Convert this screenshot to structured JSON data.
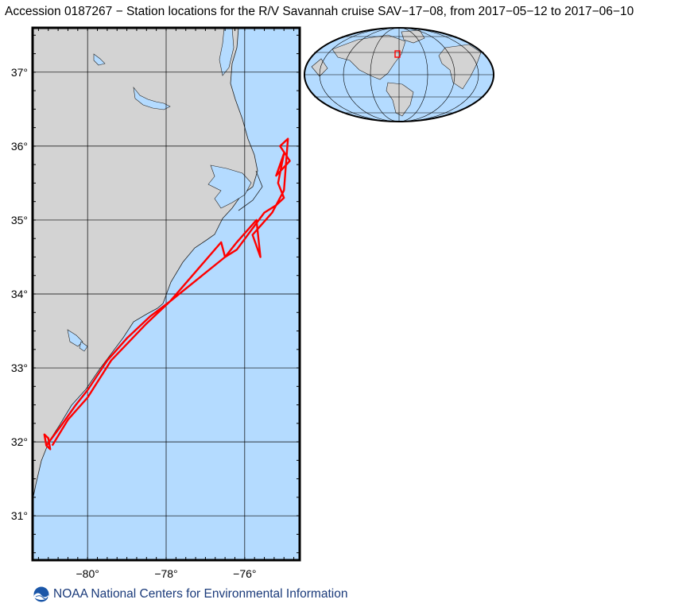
{
  "title": "Accession 0187267 − Station locations for the R/V Savannah cruise SAV−17−08, from 2017−05−12 to 2017−06−10",
  "footer": {
    "text": "NOAA National Centers for Environmental Information",
    "logo_icon": "noaa-logo-icon"
  },
  "colors": {
    "ocean": "#b4dbff",
    "land": "#d3d3d3",
    "track": "#ff0000",
    "grid": "#000000"
  },
  "map": {
    "lat_range": [
      30.4,
      37.6
    ],
    "lon_range": [
      -81.4,
      -74.6
    ],
    "lat_ticks": [
      {
        "value": 31,
        "label": "31°"
      },
      {
        "value": 32,
        "label": "32°"
      },
      {
        "value": 33,
        "label": "33°"
      },
      {
        "value": 34,
        "label": "34°"
      },
      {
        "value": 35,
        "label": "35°"
      },
      {
        "value": 36,
        "label": "36°"
      },
      {
        "value": 37,
        "label": "37°"
      }
    ],
    "lon_ticks": [
      {
        "value": -80,
        "label": "−80°"
      },
      {
        "value": -78,
        "label": "−78°"
      },
      {
        "value": -76,
        "label": "−76°"
      }
    ],
    "track": [
      [
        -81.05,
        31.95
      ],
      [
        -80.95,
        31.9
      ],
      [
        -81.0,
        32.05
      ],
      [
        -81.1,
        32.1
      ],
      [
        -81.05,
        31.95
      ],
      [
        -80.7,
        32.2
      ],
      [
        -80.3,
        32.5
      ],
      [
        -80.0,
        32.7
      ],
      [
        -79.5,
        33.1
      ],
      [
        -79.0,
        33.4
      ],
      [
        -78.4,
        33.7
      ],
      [
        -77.9,
        33.9
      ],
      [
        -76.6,
        34.7
      ],
      [
        -76.5,
        34.5
      ],
      [
        -76.2,
        34.7
      ],
      [
        -75.7,
        35.0
      ],
      [
        -75.6,
        34.5
      ],
      [
        -75.8,
        34.8
      ],
      [
        -75.3,
        35.1
      ],
      [
        -75.0,
        35.4
      ],
      [
        -74.9,
        36.1
      ],
      [
        -75.1,
        36.0
      ],
      [
        -74.85,
        35.8
      ],
      [
        -75.2,
        35.6
      ],
      [
        -75.0,
        35.9
      ],
      [
        -75.15,
        35.5
      ],
      [
        -75.0,
        35.3
      ],
      [
        -75.2,
        35.2
      ],
      [
        -75.5,
        35.1
      ],
      [
        -76.2,
        34.6
      ],
      [
        -76.5,
        34.5
      ],
      [
        -77.9,
        33.9
      ],
      [
        -78.5,
        33.6
      ],
      [
        -79.4,
        33.1
      ],
      [
        -80.0,
        32.6
      ],
      [
        -80.5,
        32.3
      ],
      [
        -80.9,
        31.95
      ]
    ]
  },
  "inset": {
    "name": "world-globe-inset"
  }
}
